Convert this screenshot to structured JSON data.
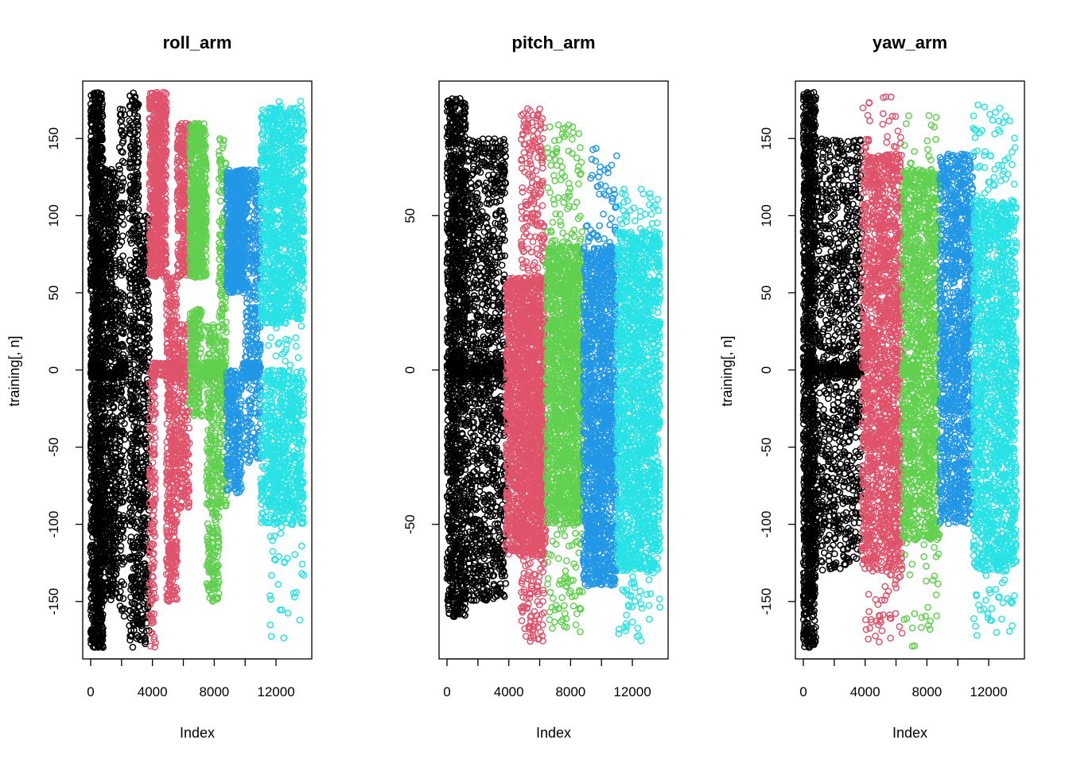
{
  "chart_data": [
    {
      "type": "scatter",
      "title": "roll_arm",
      "xlabel": "Index",
      "ylabel": "training[, n]",
      "xlim": [
        0,
        13800
      ],
      "ylim": [
        -180,
        180
      ],
      "x_ticks": [
        0,
        4000,
        8000,
        12000
      ],
      "x_minor_ticks": [
        2000,
        6000,
        10000
      ],
      "y_ticks": [
        -150,
        -100,
        -50,
        0,
        50,
        100,
        150
      ],
      "marker": "open-circle",
      "grid": false,
      "legend": "none",
      "series": [
        {
          "color": "#000000",
          "x_range": [
            0,
            3800
          ],
          "bands": [
            {
              "x": [
                0,
                800
              ],
              "y": [
                -180,
                180
              ],
              "density": 1400
            },
            {
              "x": [
                0,
                800
              ],
              "y": [
                -5,
                5
              ],
              "density": 120
            },
            {
              "x": [
                800,
                1700
              ],
              "y": [
                -150,
                130
              ],
              "density": 700
            },
            {
              "x": [
                1700,
                2300
              ],
              "y": [
                -5,
                5
              ],
              "density": 50
            },
            {
              "x": [
                1800,
                2200
              ],
              "y": [
                -160,
                170
              ],
              "density": 200
            },
            {
              "x": [
                2500,
                3100
              ],
              "y": [
                -180,
                180
              ],
              "density": 450
            },
            {
              "x": [
                3100,
                3800
              ],
              "y": [
                -180,
                100
              ],
              "density": 380
            }
          ]
        },
        {
          "color": "#df536b",
          "x_range": [
            3800,
            6400
          ],
          "bands": [
            {
              "x": [
                3800,
                4900
              ],
              "y": [
                60,
                180
              ],
              "density": 700
            },
            {
              "x": [
                3800,
                4200
              ],
              "y": [
                -180,
                0
              ],
              "density": 140
            },
            {
              "x": [
                4000,
                6200
              ],
              "y": [
                -5,
                5
              ],
              "density": 100
            },
            {
              "x": [
                4900,
                5600
              ],
              "y": [
                -150,
                60
              ],
              "density": 450
            },
            {
              "x": [
                5600,
                6400
              ],
              "y": [
                60,
                160
              ],
              "density": 280
            },
            {
              "x": [
                5600,
                6400
              ],
              "y": [
                -90,
                30
              ],
              "density": 220
            }
          ]
        },
        {
          "color": "#61d04f",
          "x_range": [
            6400,
            8800
          ],
          "bands": [
            {
              "x": [
                6400,
                7500
              ],
              "y": [
                60,
                160
              ],
              "density": 550
            },
            {
              "x": [
                6400,
                7200
              ],
              "y": [
                -30,
                40
              ],
              "density": 200
            },
            {
              "x": [
                7200,
                8800
              ],
              "y": [
                -5,
                5
              ],
              "density": 130
            },
            {
              "x": [
                7500,
                8300
              ],
              "y": [
                -150,
                30
              ],
              "density": 350
            },
            {
              "x": [
                8300,
                8800
              ],
              "y": [
                -90,
                150
              ],
              "density": 240
            }
          ]
        },
        {
          "color": "#2297e6",
          "x_range": [
            8800,
            11000
          ],
          "bands": [
            {
              "x": [
                8800,
                10000
              ],
              "y": [
                50,
                130
              ],
              "density": 600
            },
            {
              "x": [
                8800,
                9800
              ],
              "y": [
                -80,
                0
              ],
              "density": 250
            },
            {
              "x": [
                9800,
                11000
              ],
              "y": [
                -5,
                5
              ],
              "density": 90
            },
            {
              "x": [
                10000,
                11000
              ],
              "y": [
                -60,
                130
              ],
              "density": 380
            }
          ]
        },
        {
          "color": "#28e2e5",
          "x_range": [
            11000,
            13800
          ],
          "bands": [
            {
              "x": [
                11000,
                13800
              ],
              "y": [
                30,
                170
              ],
              "density": 1100
            },
            {
              "x": [
                11000,
                13800
              ],
              "y": [
                -100,
                0
              ],
              "density": 650
            },
            {
              "x": [
                11500,
                13800
              ],
              "y": [
                -175,
                175
              ],
              "density": 180
            }
          ]
        }
      ]
    },
    {
      "type": "scatter",
      "title": "pitch_arm",
      "xlabel": "Index",
      "ylabel": "",
      "xlim": [
        0,
        13800
      ],
      "ylim": [
        -90,
        90
      ],
      "x_ticks": [
        0,
        4000,
        8000,
        12000
      ],
      "x_minor_ticks": [
        2000,
        6000,
        10000
      ],
      "y_ticks": [
        -50,
        0,
        50
      ],
      "marker": "open-circle",
      "grid": false,
      "legend": "none",
      "series": [
        {
          "color": "#000000",
          "x_range": [
            0,
            3800
          ],
          "bands": [
            {
              "x": [
                0,
                1200
              ],
              "y": [
                -80,
                88
              ],
              "density": 1300
            },
            {
              "x": [
                0,
                3800
              ],
              "y": [
                -3,
                3
              ],
              "density": 160
            },
            {
              "x": [
                1200,
                3800
              ],
              "y": [
                -75,
                75
              ],
              "density": 1200
            }
          ]
        },
        {
          "color": "#df536b",
          "x_range": [
            3800,
            6400
          ],
          "bands": [
            {
              "x": [
                3800,
                6400
              ],
              "y": [
                -60,
                30
              ],
              "density": 1700
            },
            {
              "x": [
                4800,
                6300
              ],
              "y": [
                -88,
                85
              ],
              "density": 550
            }
          ]
        },
        {
          "color": "#61d04f",
          "x_range": [
            6400,
            8800
          ],
          "bands": [
            {
              "x": [
                6400,
                8800
              ],
              "y": [
                -50,
                40
              ],
              "density": 1300
            },
            {
              "x": [
                6500,
                8800
              ],
              "y": [
                -85,
                80
              ],
              "density": 380
            }
          ]
        },
        {
          "color": "#2297e6",
          "x_range": [
            8800,
            11000
          ],
          "bands": [
            {
              "x": [
                8800,
                11000
              ],
              "y": [
                -70,
                40
              ],
              "density": 1300
            },
            {
              "x": [
                9000,
                11000
              ],
              "y": [
                -70,
                72
              ],
              "density": 250
            }
          ]
        },
        {
          "color": "#28e2e5",
          "x_range": [
            11000,
            13800
          ],
          "bands": [
            {
              "x": [
                11000,
                13800
              ],
              "y": [
                -65,
                45
              ],
              "density": 1500
            },
            {
              "x": [
                11000,
                13800
              ],
              "y": [
                -88,
                60
              ],
              "density": 300
            }
          ]
        }
      ]
    },
    {
      "type": "scatter",
      "title": "yaw_arm",
      "xlabel": "Index",
      "ylabel": "training[, n]",
      "xlim": [
        0,
        13800
      ],
      "ylim": [
        -180,
        180
      ],
      "x_ticks": [
        0,
        4000,
        8000,
        12000
      ],
      "x_minor_ticks": [
        2000,
        6000,
        10000
      ],
      "y_ticks": [
        -150,
        -100,
        -50,
        0,
        50,
        100,
        150
      ],
      "marker": "open-circle",
      "grid": false,
      "legend": "none",
      "series": [
        {
          "color": "#000000",
          "x_range": [
            0,
            3800
          ],
          "bands": [
            {
              "x": [
                0,
                800
              ],
              "y": [
                -180,
                180
              ],
              "density": 1200
            },
            {
              "x": [
                0,
                3800
              ],
              "y": [
                -4,
                4
              ],
              "density": 160
            },
            {
              "x": [
                800,
                3800
              ],
              "y": [
                -130,
                150
              ],
              "density": 1000
            }
          ]
        },
        {
          "color": "#df536b",
          "x_range": [
            3800,
            6400
          ],
          "bands": [
            {
              "x": [
                3800,
                6400
              ],
              "y": [
                -130,
                140
              ],
              "density": 1600
            },
            {
              "x": [
                3800,
                6400
              ],
              "y": [
                -180,
                180
              ],
              "density": 220
            }
          ]
        },
        {
          "color": "#61d04f",
          "x_range": [
            6400,
            8800
          ],
          "bands": [
            {
              "x": [
                6400,
                8800
              ],
              "y": [
                -110,
                130
              ],
              "density": 1300
            },
            {
              "x": [
                6400,
                7400
              ],
              "y": [
                -4,
                4
              ],
              "density": 80
            },
            {
              "x": [
                6500,
                8800
              ],
              "y": [
                -180,
                165
              ],
              "density": 180
            }
          ]
        },
        {
          "color": "#2297e6",
          "x_range": [
            8800,
            11000
          ],
          "bands": [
            {
              "x": [
                8800,
                11000
              ],
              "y": [
                -100,
                140
              ],
              "density": 1300
            }
          ]
        },
        {
          "color": "#28e2e5",
          "x_range": [
            11000,
            13800
          ],
          "bands": [
            {
              "x": [
                11000,
                13800
              ],
              "y": [
                -130,
                110
              ],
              "density": 1500
            },
            {
              "x": [
                11000,
                13800
              ],
              "y": [
                -175,
                175
              ],
              "density": 250
            }
          ]
        }
      ]
    }
  ]
}
